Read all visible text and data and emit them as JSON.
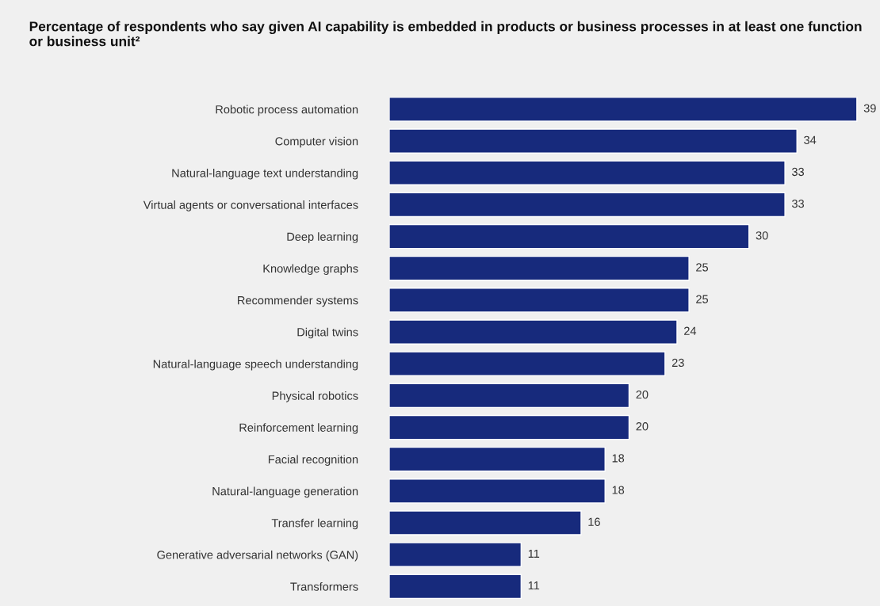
{
  "chart_data": {
    "type": "bar",
    "orientation": "horizontal",
    "title": "Percentage of respondents who say given AI capability is embedded in products or business processes in at least one function or business unit²",
    "categories": [
      "Robotic process automation",
      "Computer vision",
      "Natural-language text understanding",
      "Virtual agents or conversational interfaces",
      "Deep learning",
      "Knowledge graphs",
      "Recommender systems",
      "Digital twins",
      "Natural-language speech understanding",
      "Physical robotics",
      "Reinforcement learning",
      "Facial recognition",
      "Natural-language generation",
      "Transfer learning",
      "Generative adversarial networks (GAN)",
      "Transformers"
    ],
    "values": [
      39,
      34,
      33,
      33,
      30,
      25,
      25,
      24,
      23,
      20,
      20,
      18,
      18,
      16,
      11,
      11
    ],
    "color": "#172a7c",
    "data_labels": true,
    "grid": false,
    "legend": false
  }
}
